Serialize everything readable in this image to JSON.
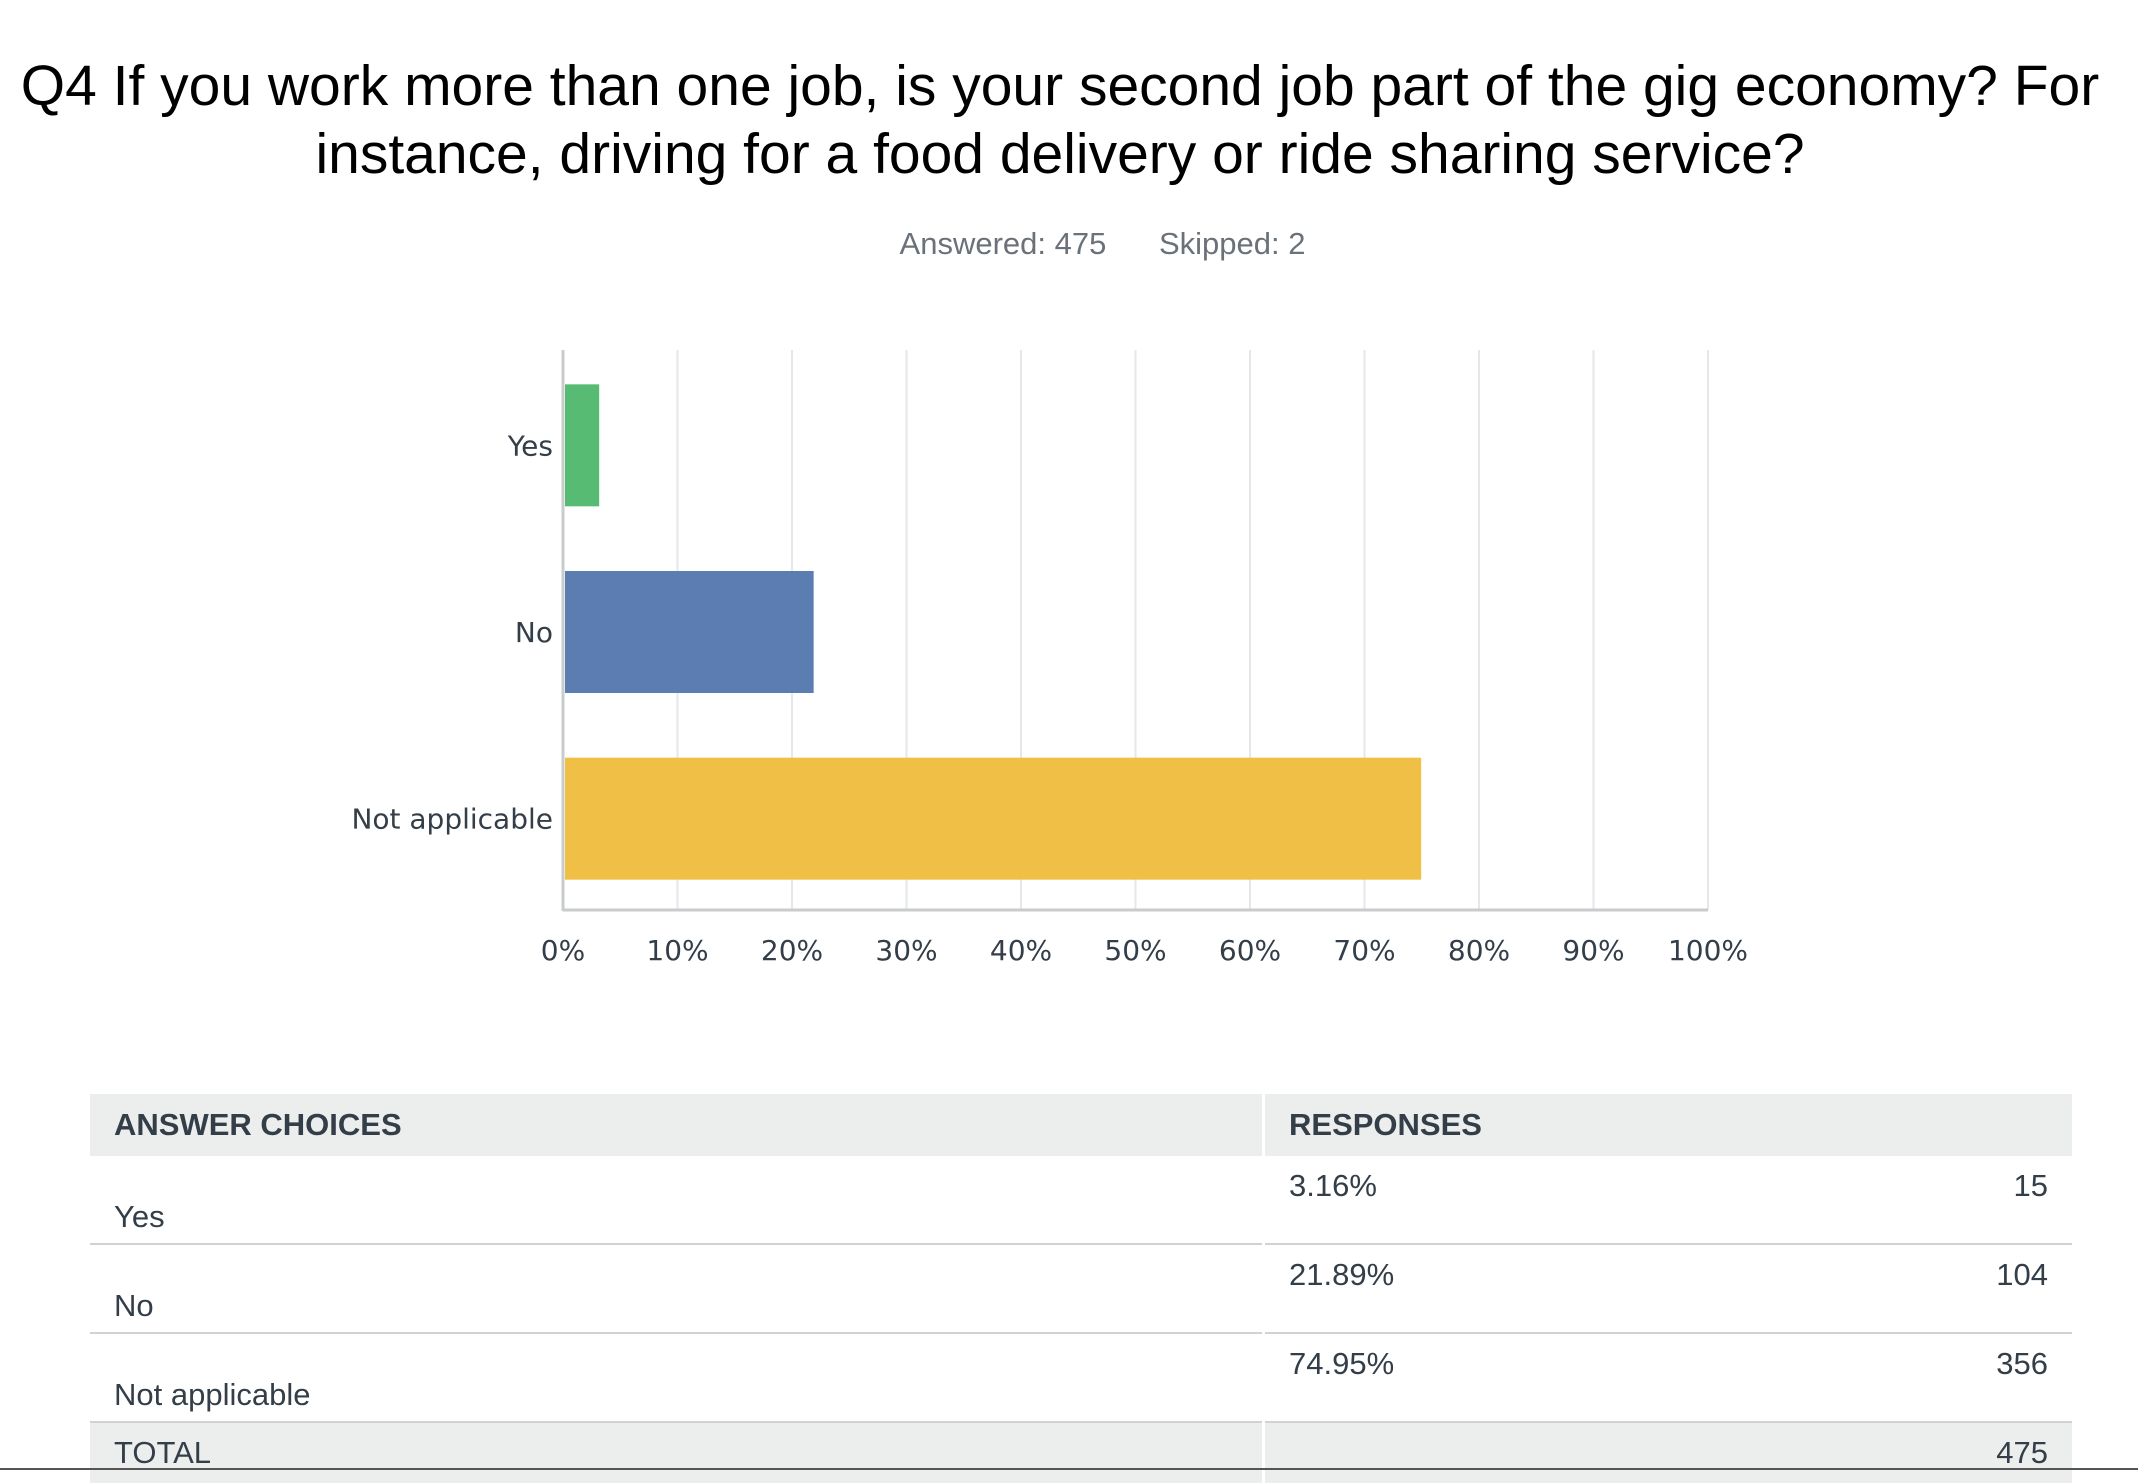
{
  "title": "Q4 If you work more than one job, is your second job part of the gig economy? For instance, driving for a food delivery or ride sharing service?",
  "stats": {
    "answered": "Answered: 475",
    "skipped": "Skipped: 2"
  },
  "chart_data": {
    "type": "bar",
    "orientation": "horizontal",
    "categories": [
      "Yes",
      "No",
      "Not applicable"
    ],
    "values": [
      3.16,
      21.89,
      74.95
    ],
    "colors": [
      "#57bb73",
      "#5b7db1",
      "#f0bf45"
    ],
    "xlim": [
      0,
      100
    ],
    "xticks": [
      "0%",
      "10%",
      "20%",
      "30%",
      "40%",
      "50%",
      "60%",
      "70%",
      "80%",
      "90%",
      "100%"
    ],
    "grid": true
  },
  "table": {
    "headers": [
      "ANSWER CHOICES",
      "RESPONSES"
    ],
    "rows": [
      {
        "choice": "Yes",
        "percent": "3.16%",
        "count": "15"
      },
      {
        "choice": "No",
        "percent": "21.89%",
        "count": "104"
      },
      {
        "choice": "Not applicable",
        "percent": "74.95%",
        "count": "356"
      }
    ],
    "total_label": "TOTAL",
    "total_count": "475"
  }
}
